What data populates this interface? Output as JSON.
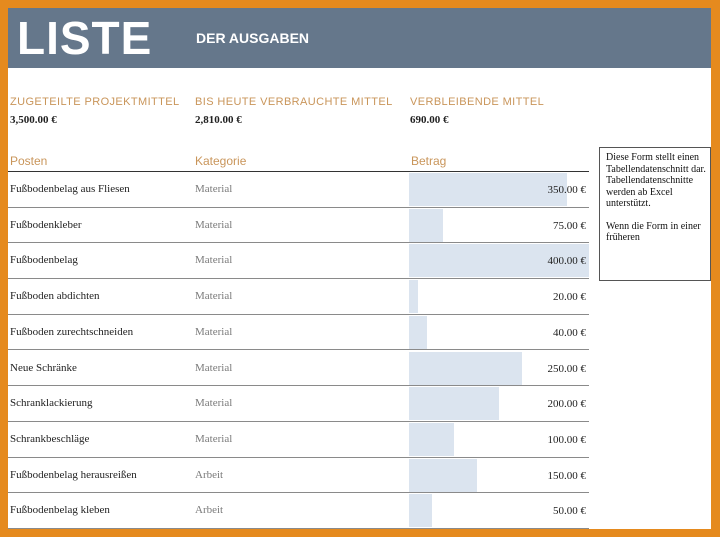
{
  "banner": {
    "title": "LISTE",
    "subtitle": "DER AUSGABEN"
  },
  "summary": [
    {
      "label": "ZUGETEILTE PROJEKTMITTEL",
      "value": "3,500.00 €"
    },
    {
      "label": "BIS HEUTE VERBRAUCHTE MITTEL",
      "value": "2,810.00 €"
    },
    {
      "label": "VERBLEIBENDE MITTEL",
      "value": "690.00 €"
    }
  ],
  "table": {
    "headers": {
      "posten": "Posten",
      "kategorie": "Kategorie",
      "betrag": "Betrag"
    },
    "max_betrag": 400,
    "rows": [
      {
        "posten": "Fußbodenbelag aus Fliesen",
        "kategorie": "Material",
        "betrag": "350.00 €",
        "amount": 350
      },
      {
        "posten": "Fußbodenkleber",
        "kategorie": "Material",
        "betrag": "75.00 €",
        "amount": 75
      },
      {
        "posten": "Fußbodenbelag",
        "kategorie": "Material",
        "betrag": "400.00 €",
        "amount": 400
      },
      {
        "posten": "Fußboden abdichten",
        "kategorie": "Material",
        "betrag": "20.00 €",
        "amount": 20
      },
      {
        "posten": "Fußboden zurechtschneiden",
        "kategorie": "Material",
        "betrag": "40.00 €",
        "amount": 40
      },
      {
        "posten": "Neue Schränke",
        "kategorie": "Material",
        "betrag": "250.00 €",
        "amount": 250
      },
      {
        "posten": "Schranklackierung",
        "kategorie": "Material",
        "betrag": "200.00 €",
        "amount": 200
      },
      {
        "posten": "Schrankbeschläge",
        "kategorie": "Material",
        "betrag": "100.00 €",
        "amount": 100
      },
      {
        "posten": "Fußbodenbelag herausreißen",
        "kategorie": "Arbeit",
        "betrag": "150.00 €",
        "amount": 150
      },
      {
        "posten": "Fußbodenbelag kleben",
        "kategorie": "Arbeit",
        "betrag": "50.00 €",
        "amount": 50
      }
    ]
  },
  "notice": {
    "line1": "Diese Form stellt einen Tabellendatenschnitt dar. Tabellendatenschnitte werden ab Excel unterstützt.",
    "line2": "Wenn die Form in einer früheren"
  },
  "colors": {
    "banner": "#65778b",
    "accent_label": "#c9955a",
    "bar_fill": "#dbe4ef",
    "frame": "#e58a1e"
  }
}
